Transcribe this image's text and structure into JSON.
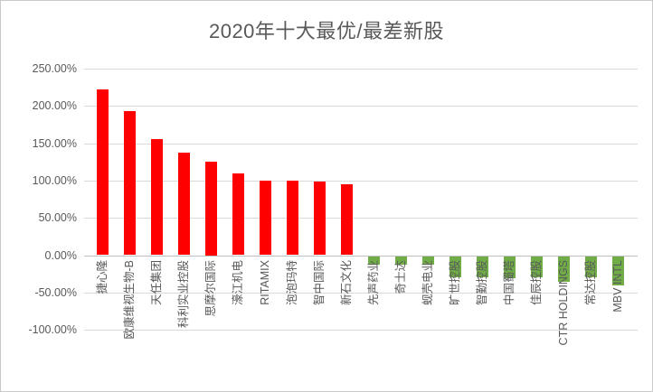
{
  "chart_data": {
    "type": "bar",
    "title": "2020年十大最优/最差新股",
    "categories": [
      "捷心隆",
      "欧康维视生物-B",
      "天任集团",
      "科利实业控股",
      "思摩尔国际",
      "濠江机电",
      "RITAMIX",
      "泡泡玛特",
      "智中国际",
      "新石文化",
      "先声药业",
      "奇士达",
      "蚬壳电业",
      "旷世控股",
      "智勤控股",
      "中国蜀塔",
      "佳辰控股",
      "CTR HOLDINGS",
      "常达控股",
      "MBV INTL"
    ],
    "values": [
      222,
      193,
      156,
      137,
      125,
      110,
      100,
      100,
      99,
      95,
      -12,
      -12,
      -11,
      -28,
      -28,
      -30,
      -29,
      -34,
      -29,
      -39
    ],
    "unit": "percent",
    "ytick_labels": [
      "250.00%",
      "200.00%",
      "150.00%",
      "100.00%",
      "50.00%",
      "0.00%",
      "-50.00%",
      "-100.00%"
    ],
    "ytick_values": [
      250,
      200,
      150,
      100,
      50,
      0,
      -50,
      -100
    ],
    "ylim": [
      -100,
      250
    ],
    "grid": true,
    "legend": "none",
    "xlabel": "",
    "ylabel": "",
    "x_label_rotation_deg": -90,
    "colors": {
      "positive_bar": "#ff0000",
      "negative_bar": "#70ad47",
      "title_text": "#595959",
      "axis_text": "#595959",
      "gridline": "#d9d9d9",
      "zero_axis_line": "#bfbfbf",
      "background": "#ffffff",
      "border": "#c9c9c9"
    }
  }
}
